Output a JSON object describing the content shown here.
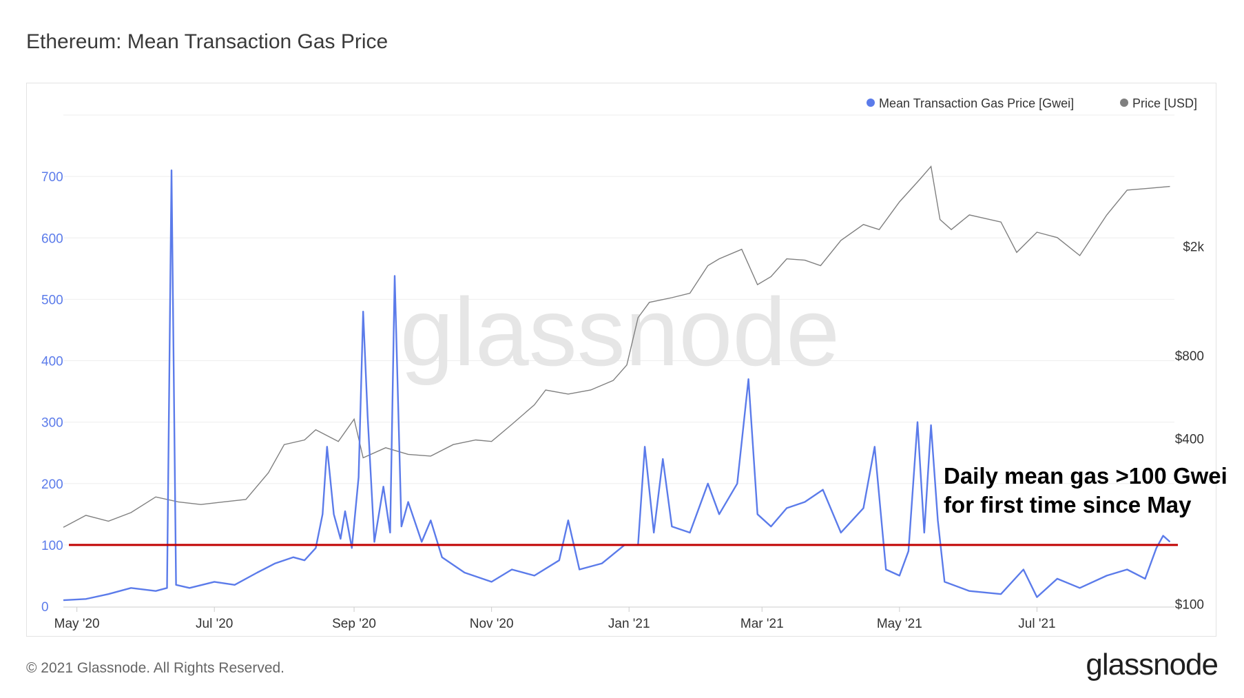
{
  "title": "Ethereum: Mean Transaction Gas Price",
  "footer": "© 2021 Glassnode. All Rights Reserved.",
  "brand": "glassnode",
  "watermark": "glassnode",
  "annotation": {
    "line1": "Daily mean gas >100 Gwei",
    "line2": "for first time since May"
  },
  "colors": {
    "gas": "#5b7bea",
    "price": "#7f7f7f",
    "threshold": "#c00000",
    "grid": "#eeeeee"
  },
  "chart_data": {
    "type": "line",
    "legend_position": "top-right",
    "grid": true,
    "x_axis": {
      "range": [
        "2020-04-25",
        "2021-08-31"
      ],
      "ticks": [
        {
          "label": "May '20",
          "date": "2020-05-01"
        },
        {
          "label": "Jul '20",
          "date": "2020-07-01"
        },
        {
          "label": "Sep '20",
          "date": "2020-09-01"
        },
        {
          "label": "Nov '20",
          "date": "2020-11-01"
        },
        {
          "label": "Jan '21",
          "date": "2021-01-01"
        },
        {
          "label": "Mar '21",
          "date": "2021-03-01"
        },
        {
          "label": "May '21",
          "date": "2021-05-01"
        },
        {
          "label": "Jul '21",
          "date": "2021-07-01"
        }
      ]
    },
    "y_left": {
      "ylim": [
        0,
        800
      ],
      "ticks": [
        0,
        100,
        200,
        300,
        400,
        500,
        600,
        700
      ]
    },
    "y_right": {
      "scale": "log",
      "ylim": [
        98,
        6000
      ],
      "ticks": [
        {
          "label": "$100",
          "value": 100
        },
        {
          "label": "$400",
          "value": 400
        },
        {
          "label": "$800",
          "value": 800
        },
        {
          "label": "$2k",
          "value": 2000
        }
      ]
    },
    "threshold": {
      "value": 100
    },
    "series": [
      {
        "name": "Mean Transaction Gas Price [Gwei]",
        "axis": "left",
        "points": [
          [
            "2020-04-25",
            10
          ],
          [
            "2020-05-05",
            12
          ],
          [
            "2020-05-15",
            20
          ],
          [
            "2020-05-25",
            30
          ],
          [
            "2020-06-05",
            25
          ],
          [
            "2020-06-10",
            30
          ],
          [
            "2020-06-12",
            710
          ],
          [
            "2020-06-14",
            35
          ],
          [
            "2020-06-20",
            30
          ],
          [
            "2020-07-01",
            40
          ],
          [
            "2020-07-10",
            35
          ],
          [
            "2020-07-20",
            55
          ],
          [
            "2020-07-28",
            70
          ],
          [
            "2020-08-05",
            80
          ],
          [
            "2020-08-10",
            75
          ],
          [
            "2020-08-15",
            95
          ],
          [
            "2020-08-18",
            150
          ],
          [
            "2020-08-20",
            260
          ],
          [
            "2020-08-23",
            150
          ],
          [
            "2020-08-26",
            110
          ],
          [
            "2020-08-28",
            155
          ],
          [
            "2020-08-31",
            95
          ],
          [
            "2020-09-03",
            210
          ],
          [
            "2020-09-05",
            480
          ],
          [
            "2020-09-07",
            310
          ],
          [
            "2020-09-10",
            105
          ],
          [
            "2020-09-14",
            195
          ],
          [
            "2020-09-17",
            120
          ],
          [
            "2020-09-19",
            538
          ],
          [
            "2020-09-22",
            130
          ],
          [
            "2020-09-25",
            170
          ],
          [
            "2020-10-01",
            105
          ],
          [
            "2020-10-05",
            140
          ],
          [
            "2020-10-10",
            80
          ],
          [
            "2020-10-20",
            55
          ],
          [
            "2020-11-01",
            40
          ],
          [
            "2020-11-10",
            60
          ],
          [
            "2020-11-20",
            50
          ],
          [
            "2020-12-01",
            75
          ],
          [
            "2020-12-05",
            140
          ],
          [
            "2020-12-10",
            60
          ],
          [
            "2020-12-20",
            70
          ],
          [
            "2020-12-30",
            100
          ],
          [
            "2021-01-05",
            100
          ],
          [
            "2021-01-08",
            260
          ],
          [
            "2021-01-12",
            120
          ],
          [
            "2021-01-16",
            240
          ],
          [
            "2021-01-20",
            130
          ],
          [
            "2021-01-28",
            120
          ],
          [
            "2021-02-05",
            200
          ],
          [
            "2021-02-10",
            150
          ],
          [
            "2021-02-18",
            200
          ],
          [
            "2021-02-23",
            370
          ],
          [
            "2021-02-27",
            150
          ],
          [
            "2021-03-05",
            130
          ],
          [
            "2021-03-12",
            160
          ],
          [
            "2021-03-20",
            170
          ],
          [
            "2021-03-28",
            190
          ],
          [
            "2021-04-05",
            120
          ],
          [
            "2021-04-15",
            160
          ],
          [
            "2021-04-20",
            260
          ],
          [
            "2021-04-25",
            60
          ],
          [
            "2021-05-01",
            50
          ],
          [
            "2021-05-05",
            90
          ],
          [
            "2021-05-09",
            300
          ],
          [
            "2021-05-12",
            120
          ],
          [
            "2021-05-15",
            295
          ],
          [
            "2021-05-18",
            140
          ],
          [
            "2021-05-21",
            40
          ],
          [
            "2021-06-01",
            25
          ],
          [
            "2021-06-15",
            20
          ],
          [
            "2021-06-25",
            60
          ],
          [
            "2021-07-01",
            15
          ],
          [
            "2021-07-10",
            45
          ],
          [
            "2021-07-20",
            30
          ],
          [
            "2021-08-01",
            50
          ],
          [
            "2021-08-10",
            60
          ],
          [
            "2021-08-18",
            45
          ],
          [
            "2021-08-23",
            95
          ],
          [
            "2021-08-26",
            115
          ],
          [
            "2021-08-29",
            105
          ]
        ]
      },
      {
        "name": "Price [USD]",
        "axis": "right",
        "points": [
          [
            "2020-04-25",
            190
          ],
          [
            "2020-05-05",
            210
          ],
          [
            "2020-05-15",
            200
          ],
          [
            "2020-05-25",
            215
          ],
          [
            "2020-06-05",
            245
          ],
          [
            "2020-06-15",
            235
          ],
          [
            "2020-06-25",
            230
          ],
          [
            "2020-07-05",
            235
          ],
          [
            "2020-07-15",
            240
          ],
          [
            "2020-07-25",
            300
          ],
          [
            "2020-08-01",
            380
          ],
          [
            "2020-08-10",
            395
          ],
          [
            "2020-08-15",
            430
          ],
          [
            "2020-08-25",
            390
          ],
          [
            "2020-09-01",
            470
          ],
          [
            "2020-09-05",
            340
          ],
          [
            "2020-09-15",
            370
          ],
          [
            "2020-09-25",
            350
          ],
          [
            "2020-10-05",
            345
          ],
          [
            "2020-10-15",
            380
          ],
          [
            "2020-10-25",
            395
          ],
          [
            "2020-11-01",
            390
          ],
          [
            "2020-11-10",
            450
          ],
          [
            "2020-11-20",
            530
          ],
          [
            "2020-11-25",
            600
          ],
          [
            "2020-12-05",
            580
          ],
          [
            "2020-12-15",
            600
          ],
          [
            "2020-12-25",
            650
          ],
          [
            "2020-12-31",
            740
          ],
          [
            "2021-01-05",
            1100
          ],
          [
            "2021-01-10",
            1250
          ],
          [
            "2021-01-20",
            1300
          ],
          [
            "2021-01-28",
            1350
          ],
          [
            "2021-02-05",
            1700
          ],
          [
            "2021-02-10",
            1800
          ],
          [
            "2021-02-20",
            1950
          ],
          [
            "2021-02-27",
            1450
          ],
          [
            "2021-03-05",
            1550
          ],
          [
            "2021-03-12",
            1800
          ],
          [
            "2021-03-20",
            1780
          ],
          [
            "2021-03-27",
            1700
          ],
          [
            "2021-04-05",
            2100
          ],
          [
            "2021-04-15",
            2400
          ],
          [
            "2021-04-22",
            2300
          ],
          [
            "2021-05-01",
            2900
          ],
          [
            "2021-05-10",
            3500
          ],
          [
            "2021-05-15",
            3900
          ],
          [
            "2021-05-19",
            2500
          ],
          [
            "2021-05-24",
            2300
          ],
          [
            "2021-06-01",
            2600
          ],
          [
            "2021-06-15",
            2450
          ],
          [
            "2021-06-22",
            1900
          ],
          [
            "2021-07-01",
            2250
          ],
          [
            "2021-07-10",
            2150
          ],
          [
            "2021-07-20",
            1850
          ],
          [
            "2021-08-01",
            2600
          ],
          [
            "2021-08-10",
            3200
          ],
          [
            "2021-08-20",
            3250
          ],
          [
            "2021-08-29",
            3300
          ]
        ]
      }
    ]
  }
}
